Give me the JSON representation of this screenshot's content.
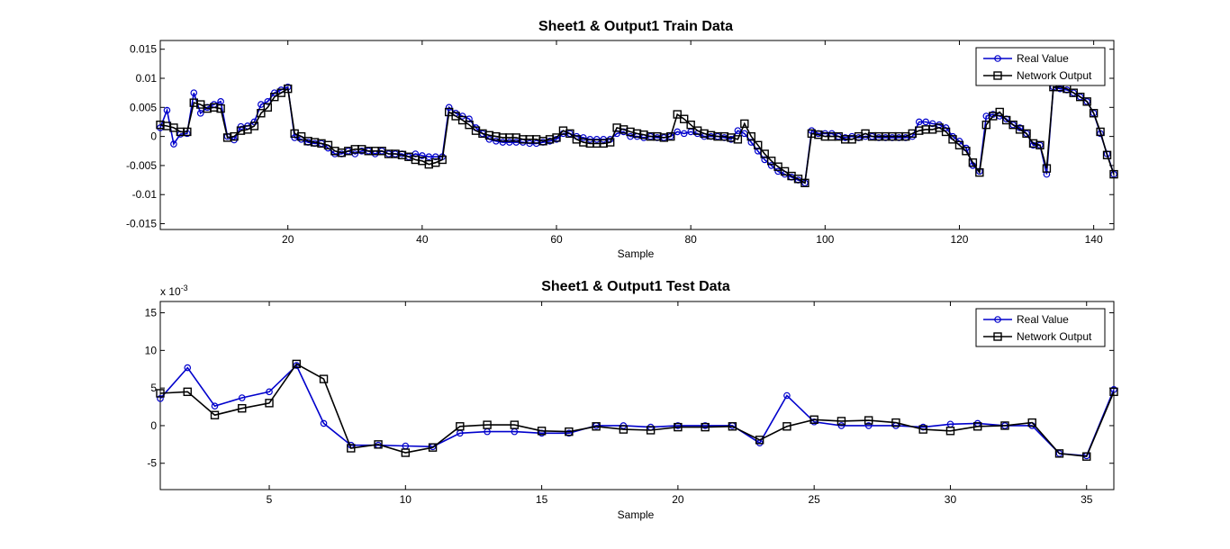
{
  "chart_data": [
    {
      "type": "line",
      "title": "Sheet1 & Output1 Train Data",
      "xlabel": "Sample",
      "ylabel": "",
      "xlim": [
        1,
        143
      ],
      "ylim": [
        -0.016,
        0.0165
      ],
      "xticks": [
        20,
        40,
        60,
        80,
        100,
        120,
        140
      ],
      "yticks": [
        -0.015,
        -0.01,
        -0.005,
        0,
        0.005,
        0.01,
        0.015
      ],
      "ytick_labels": [
        "-0.015",
        "-0.01",
        "-0.005",
        "0",
        "0.005",
        "0.01",
        "0.015"
      ],
      "exponent_label": "",
      "legend_position": "top-right",
      "series": [
        {
          "name": "Real Value",
          "color": "#0000cc",
          "marker": "circle",
          "values": [
            0.0015,
            0.0045,
            -0.0013,
            0.0004,
            0.0005,
            0.0075,
            0.004,
            0.005,
            0.0055,
            0.006,
            0.0,
            -0.0006,
            0.0017,
            0.0018,
            0.0025,
            0.0055,
            0.006,
            0.0075,
            0.008,
            0.0085,
            -0.0002,
            -0.0005,
            -0.001,
            -0.0012,
            -0.0012,
            -0.002,
            -0.003,
            -0.003,
            -0.0025,
            -0.003,
            -0.0025,
            -0.0025,
            -0.003,
            -0.0025,
            -0.003,
            -0.003,
            -0.003,
            -0.0035,
            -0.003,
            -0.0033,
            -0.0035,
            -0.0035,
            -0.0035,
            0.005,
            0.004,
            0.0035,
            0.003,
            0.0015,
            0.0005,
            -0.0005,
            -0.0008,
            -0.001,
            -0.001,
            -0.001,
            -0.001,
            -0.0012,
            -0.0012,
            -0.001,
            -0.0008,
            -0.0005,
            0.0005,
            0.0005,
            0.0,
            -0.0002,
            -0.0005,
            -0.0005,
            -0.0005,
            -0.0005,
            0.0005,
            0.0008,
            0.0,
            0.0,
            -0.0002,
            0.0,
            -0.0002,
            -0.0002,
            0.0,
            0.0008,
            0.0005,
            0.0008,
            0.0005,
            0.0,
            0.0,
            0.0,
            -0.0002,
            -0.0005,
            0.001,
            0.0005,
            -0.001,
            -0.0025,
            -0.004,
            -0.005,
            -0.006,
            -0.0065,
            -0.007,
            -0.0075,
            -0.008,
            0.001,
            0.0005,
            0.0005,
            0.0005,
            0.0,
            -0.0002,
            0.0,
            -0.0002,
            0.0,
            0.0,
            -0.0002,
            -0.0002,
            -0.0002,
            -0.0002,
            -0.0002,
            0.0,
            0.0025,
            0.0025,
            0.0022,
            0.002,
            0.0015,
            0.0,
            -0.0008,
            -0.002,
            -0.005,
            -0.006,
            0.0035,
            0.0038,
            0.0035,
            0.003,
            0.002,
            0.0015,
            0.0005,
            -0.0015,
            -0.0015,
            -0.0065,
            0.0085,
            0.0082,
            0.008,
            0.0075,
            0.0068,
            0.006,
            0.004,
            0.0005,
            -0.003,
            -0.0065
          ]
        },
        {
          "name": "Network Output",
          "color": "#000000",
          "marker": "square",
          "values": [
            0.002,
            0.0018,
            0.0015,
            0.0008,
            0.0008,
            0.0058,
            0.0055,
            0.0048,
            0.005,
            0.0048,
            -0.0002,
            0.0,
            0.001,
            0.0012,
            0.0018,
            0.004,
            0.005,
            0.0068,
            0.0075,
            0.0082,
            0.0005,
            0.0,
            -0.0008,
            -0.001,
            -0.0012,
            -0.0015,
            -0.0025,
            -0.0028,
            -0.0025,
            -0.0022,
            -0.0022,
            -0.0025,
            -0.0025,
            -0.0025,
            -0.003,
            -0.003,
            -0.0032,
            -0.0035,
            -0.004,
            -0.0042,
            -0.0048,
            -0.0045,
            -0.004,
            0.0042,
            0.0035,
            0.0028,
            0.002,
            0.001,
            0.0005,
            0.0002,
            0.0,
            -0.0002,
            -0.0002,
            -0.0002,
            -0.0005,
            -0.0005,
            -0.0005,
            -0.0008,
            -0.0005,
            -0.0002,
            0.001,
            0.0005,
            -0.0005,
            -0.001,
            -0.0012,
            -0.0012,
            -0.0012,
            -0.001,
            0.0015,
            0.0012,
            0.0008,
            0.0005,
            0.0003,
            0.0,
            0.0,
            -0.0002,
            0.0,
            0.0038,
            0.003,
            0.002,
            0.001,
            0.0005,
            0.0002,
            0.0,
            0.0,
            -0.0002,
            -0.0005,
            0.0022,
            0.0,
            -0.0015,
            -0.003,
            -0.0042,
            -0.0052,
            -0.006,
            -0.0068,
            -0.0073,
            -0.008,
            0.0005,
            0.0003,
            0.0,
            0.0,
            0.0,
            -0.0005,
            -0.0005,
            0.0,
            0.0005,
            0.0,
            0.0,
            0.0,
            0.0,
            0.0,
            0.0,
            0.0005,
            0.001,
            0.0012,
            0.0012,
            0.0015,
            0.0008,
            -0.0005,
            -0.0015,
            -0.0025,
            -0.0045,
            -0.0062,
            0.002,
            0.0035,
            0.0042,
            0.0028,
            0.002,
            0.0012,
            0.0005,
            -0.0012,
            -0.0015,
            -0.0055,
            0.0085,
            0.0085,
            0.0082,
            0.0075,
            0.0068,
            0.006,
            0.004,
            0.0008,
            -0.0032,
            -0.0065
          ]
        }
      ]
    },
    {
      "type": "line",
      "title": "Sheet1 & Output1 Test Data",
      "xlabel": "Sample",
      "ylabel": "",
      "xlim": [
        1,
        36
      ],
      "ylim": [
        -8.5,
        16.5
      ],
      "xticks": [
        5,
        10,
        15,
        20,
        25,
        30,
        35
      ],
      "yticks": [
        -5,
        0,
        5,
        10,
        15
      ],
      "ytick_labels": [
        "-5",
        "0",
        "5",
        "10",
        "15"
      ],
      "exponent_label": "x 10",
      "exponent_power": "-3",
      "legend_position": "top-right",
      "series": [
        {
          "name": "Real Value",
          "color": "#0000cc",
          "marker": "circle",
          "values": [
            3.6,
            7.7,
            2.6,
            3.7,
            4.5,
            8.0,
            0.3,
            -2.6,
            -2.6,
            -2.7,
            -2.8,
            -1.0,
            -0.8,
            -0.8,
            -1.0,
            -1.0,
            0.0,
            0.0,
            -0.2,
            0.0,
            0.0,
            0.0,
            -2.3,
            4.0,
            0.5,
            0.0,
            0.0,
            0.0,
            -0.2,
            0.2,
            0.3,
            0.0,
            0.0,
            -3.7,
            -4.0,
            4.8
          ]
        },
        {
          "name": "Network Output",
          "color": "#000000",
          "marker": "square",
          "values": [
            4.3,
            4.5,
            1.4,
            2.3,
            3.0,
            8.2,
            6.2,
            -3.0,
            -2.5,
            -3.6,
            -2.9,
            -0.1,
            0.1,
            0.1,
            -0.7,
            -0.8,
            -0.1,
            -0.5,
            -0.6,
            -0.2,
            -0.2,
            -0.1,
            -1.9,
            -0.1,
            0.8,
            0.6,
            0.7,
            0.4,
            -0.5,
            -0.7,
            -0.1,
            0.0,
            0.4,
            -3.7,
            -4.1,
            4.5
          ]
        }
      ]
    }
  ]
}
